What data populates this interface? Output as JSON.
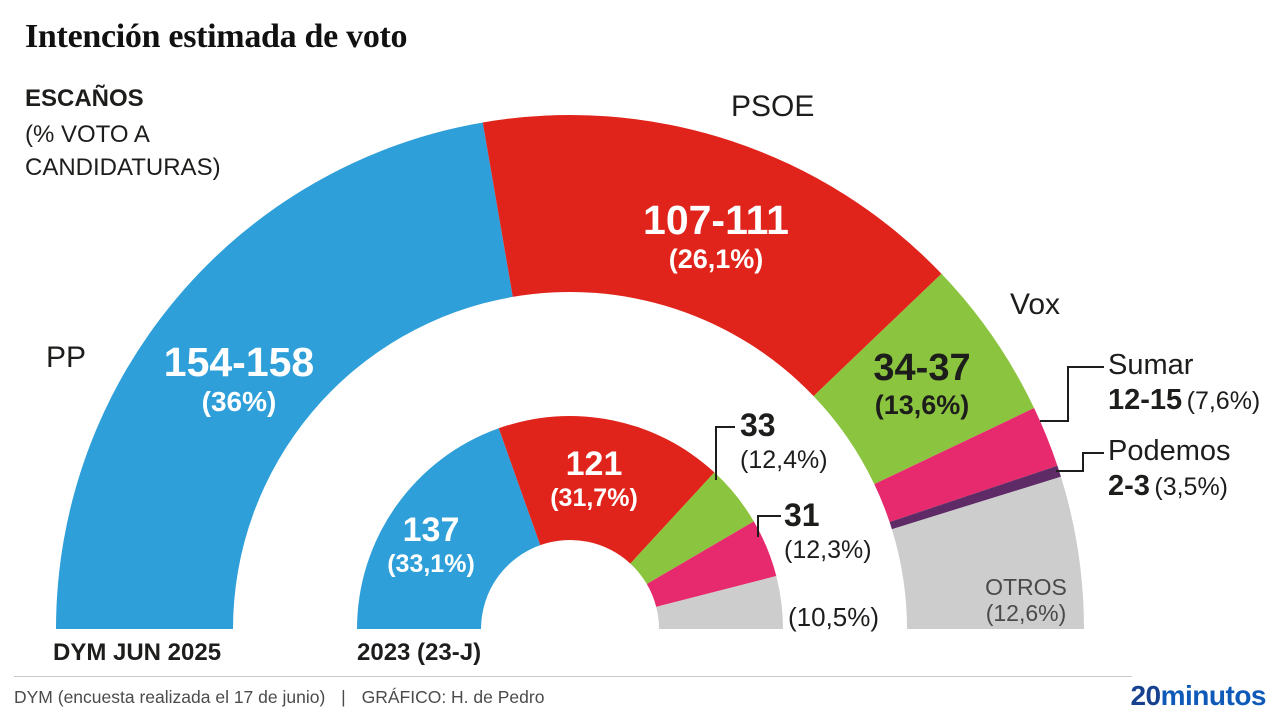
{
  "header": {
    "title": "Intención estimada de voto",
    "unit_label": "ESCAÑOS",
    "unit_note": "(% VOTO A\nCANDIDATURAS)"
  },
  "chart_data": {
    "type": "half-donut",
    "title": "Intención estimada de voto",
    "unit": "escaños (% voto a candidaturas)",
    "total_seats": 350,
    "legend_position": "labels-on-chart",
    "rings": [
      {
        "id": "dym-jun-2025",
        "label": "DYM JUN 2025",
        "segments": [
          {
            "party": "PP",
            "seats": "154-158",
            "seats_mid": 156,
            "pct": "(36%)",
            "pct_value": 36.0,
            "color": "#2e9fd9"
          },
          {
            "party": "PSOE",
            "seats": "107-111",
            "seats_mid": 109,
            "pct": "(26,1%)",
            "pct_value": 26.1,
            "color": "#e1241b"
          },
          {
            "party": "Vox",
            "seats": "34-37",
            "seats_mid": 35.5,
            "pct": "(13,6%)",
            "pct_value": 13.6,
            "color": "#8bc43e"
          },
          {
            "party": "Sumar",
            "seats": "12-15",
            "seats_mid": 13.5,
            "pct": "(7,6%)",
            "pct_value": 7.6,
            "color": "#e72a6d"
          },
          {
            "party": "Podemos",
            "seats": "2-3",
            "seats_mid": 2.5,
            "pct": "(3,5%)",
            "pct_value": 3.5,
            "color": "#5f2b66"
          },
          {
            "party": "OTROS",
            "seats": "",
            "seats_mid": 33.5,
            "pct": "(12,6%)",
            "pct_value": 12.6,
            "color": "#cdcdcd"
          }
        ]
      },
      {
        "id": "2023-23j",
        "label": "2023 (23-J)",
        "segments": [
          {
            "party": "PP",
            "seats": "137",
            "seats_mid": 137,
            "pct": "(33,1%)",
            "pct_value": 33.1,
            "color": "#2e9fd9"
          },
          {
            "party": "PSOE",
            "seats": "121",
            "seats_mid": 121,
            "pct": "(31,7%)",
            "pct_value": 31.7,
            "color": "#e1241b"
          },
          {
            "party": "Vox",
            "seats": "33",
            "seats_mid": 33,
            "pct": "(12,4%)",
            "pct_value": 12.4,
            "color": "#8bc43e"
          },
          {
            "party": "Sumar",
            "seats": "31",
            "seats_mid": 31,
            "pct": "(12,3%)",
            "pct_value": 12.3,
            "color": "#e72a6d"
          },
          {
            "party": "OTROS",
            "seats": "",
            "seats_mid": 28,
            "pct": "(10,5%)",
            "pct_value": 10.5,
            "color": "#cdcdcd"
          }
        ]
      }
    ]
  },
  "footer": {
    "source": "DYM (encuesta realizada el 17 de junio)",
    "separator": "|",
    "credit": "GRÁFICO: H. de Pedro",
    "logo_part1": "20",
    "logo_part2": "minutos"
  },
  "colors": {
    "pp_blue": "#2e9fd9",
    "psoe_red": "#e1241b",
    "vox_green": "#8bc43e",
    "sumar_pink": "#e72a6d",
    "podemos_purple": "#5f2b66",
    "otros_gray": "#cdcdcd",
    "text_dark": "#1d1d1b",
    "footer_gray": "#4b4b4a",
    "logo_blue_dark": "#17418f",
    "logo_blue": "#0f5ab8"
  }
}
